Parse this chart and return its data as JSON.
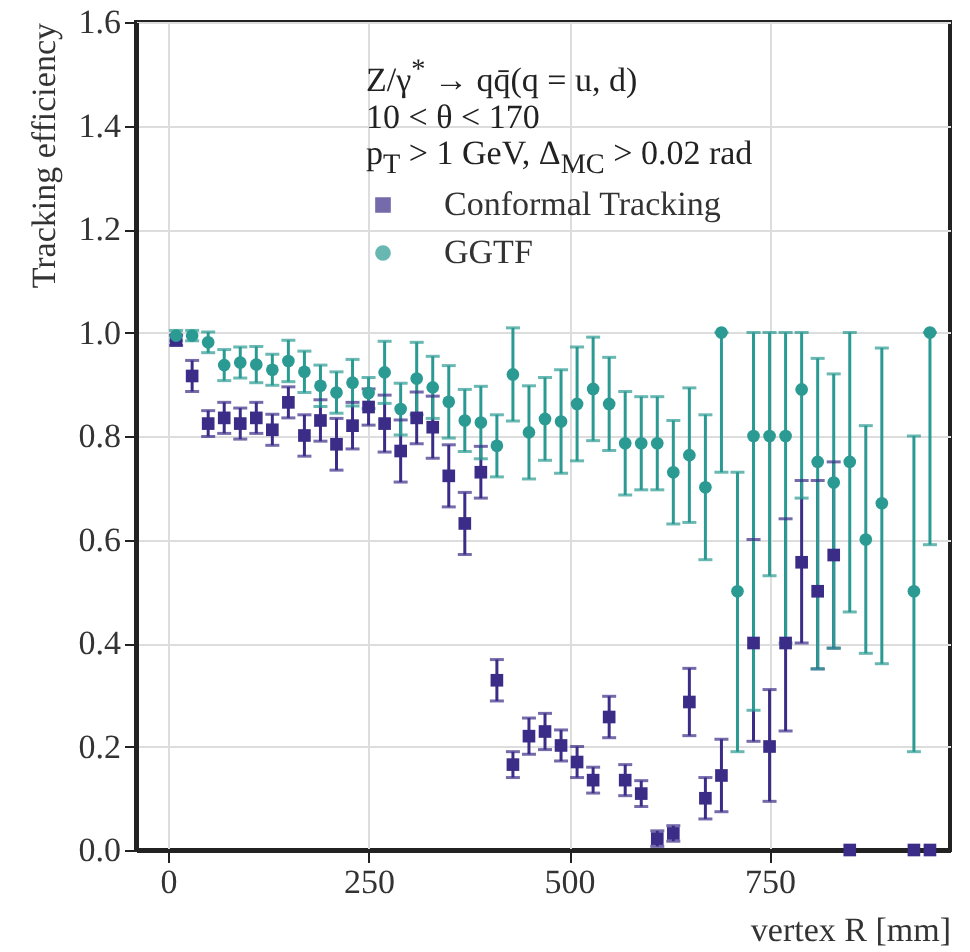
{
  "chart_data": {
    "type": "scatter",
    "xlabel": "vertex R [mm]",
    "ylabel": "Tracking efficiency",
    "annotations": [
      "Z/γ$^{*}$ → qq̄(q = u, d)",
      "10 < θ < 170",
      "p$_{T}$ > 1 GeV, Δ$_{MC}$ > 0.02 rad"
    ],
    "x": [
      10,
      30,
      50,
      70,
      90,
      110,
      130,
      150,
      170,
      190,
      210,
      230,
      250,
      270,
      290,
      310,
      330,
      350,
      370,
      390,
      410,
      430,
      450,
      470,
      490,
      510,
      530,
      550,
      570,
      590,
      610,
      630,
      650,
      670,
      690,
      710,
      730,
      750,
      770,
      790,
      810,
      830,
      850,
      870,
      890,
      930,
      950
    ],
    "series": [
      {
        "name": "Conformal Tracking",
        "color": "#3b2c87",
        "marker": "square",
        "values": [
          0.985,
          0.916,
          0.824,
          0.835,
          0.824,
          0.835,
          0.812,
          0.865,
          0.801,
          0.83,
          0.784,
          0.82,
          0.856,
          0.824,
          0.771,
          0.835,
          0.817,
          0.723,
          0.631,
          0.73,
          0.328,
          0.165,
          0.22,
          0.229,
          0.202,
          0.17,
          0.135,
          0.257,
          0.135,
          0.109,
          0.022,
          0.032,
          0.286,
          0.1,
          0.144,
          null,
          0.4,
          0.2,
          0.4,
          0.556,
          0.5,
          0.57,
          0.0,
          null,
          null,
          0.0,
          0.0
        ],
        "errors": [
          0.01,
          0.03,
          0.025,
          0.03,
          0.03,
          0.03,
          0.03,
          0.03,
          0.04,
          0.04,
          0.05,
          0.045,
          0.035,
          0.055,
          0.06,
          0.05,
          0.06,
          0.06,
          0.06,
          0.05,
          0.04,
          0.025,
          0.035,
          0.035,
          0.03,
          0.03,
          0.025,
          0.04,
          0.03,
          0.025,
          0.015,
          0.015,
          0.065,
          0.04,
          0.07,
          null,
          [
            0.21,
            0.6
          ],
          [
            0.094,
            0.31
          ],
          [
            0.23,
            0.64
          ],
          [
            0.4,
            0.714
          ],
          [
            0.35,
            0.714
          ],
          [
            0.39,
            0.75
          ],
          null,
          null,
          null,
          null,
          null
        ]
      },
      {
        "name": "GGTF",
        "color": "#2a9a92",
        "marker": "circle",
        "values": [
          0.994,
          0.994,
          0.981,
          0.937,
          0.942,
          0.938,
          0.928,
          0.945,
          0.924,
          0.897,
          0.884,
          0.903,
          0.883,
          0.923,
          0.852,
          0.911,
          0.894,
          0.866,
          0.83,
          0.826,
          0.781,
          0.919,
          0.807,
          0.833,
          0.828,
          0.862,
          0.891,
          0.862,
          0.786,
          0.786,
          0.786,
          0.73,
          0.763,
          0.701,
          1.0,
          0.5,
          0.8,
          0.8,
          0.8,
          0.89,
          0.75,
          0.71,
          0.75,
          0.6,
          0.67,
          0.5,
          1.0
        ],
        "errors": [
          0.01,
          0.01,
          0.02,
          0.03,
          0.03,
          0.035,
          0.03,
          0.04,
          0.04,
          0.04,
          0.04,
          0.045,
          0.03,
          0.06,
          0.05,
          0.07,
          0.06,
          0.07,
          0.06,
          0.07,
          0.06,
          0.09,
          0.09,
          0.08,
          0.1,
          0.11,
          0.1,
          0.09,
          0.1,
          0.09,
          0.09,
          0.1,
          0.13,
          0.14,
          [
            0.73,
            1.0
          ],
          [
            0.19,
            0.73
          ],
          [
            0.27,
            1.0
          ],
          [
            0.53,
            1.0
          ],
          [
            0.4,
            1.0
          ],
          [
            0.68,
            1.0
          ],
          [
            0.35,
            0.95
          ],
          [
            0.39,
            0.92
          ],
          [
            0.46,
            1.0
          ],
          [
            0.38,
            0.82
          ],
          [
            0.36,
            0.97
          ],
          [
            0.19,
            0.8
          ],
          [
            0.59,
            1.0
          ]
        ]
      }
    ],
    "xlim": [
      -40,
      975
    ],
    "xticks": [
      0,
      250,
      500,
      750
    ],
    "ylim": [
      0,
      1.6
    ],
    "yticks": [
      {
        "value": 0,
        "label": "0.0"
      },
      {
        "value": 0.2,
        "label": "0.2"
      },
      {
        "value": 0.4,
        "label": "0.4"
      },
      {
        "value": 0.6,
        "label": "0.6"
      },
      {
        "value": 0.8,
        "label": "0.8"
      },
      {
        "value": 1.0,
        "label": "1.0"
      },
      {
        "value": 1.2,
        "label": "1.2"
      },
      {
        "value": 1.4,
        "label": "1.4"
      },
      {
        "value": 1.6,
        "label": "1.6"
      }
    ],
    "grid": true,
    "legend": "top"
  }
}
